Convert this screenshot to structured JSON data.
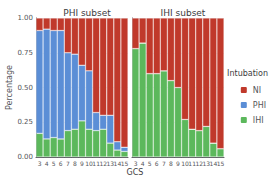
{
  "chart_data": [
    {
      "type": "bar",
      "title": "PHI subset",
      "categories": [
        3,
        4,
        5,
        6,
        7,
        8,
        9,
        10,
        11,
        12,
        13,
        14,
        15
      ],
      "series": [
        {
          "name": "IHI",
          "color": "#5cb85c",
          "values": [
            0.17,
            0.13,
            0.14,
            0.13,
            0.19,
            0.2,
            0.26,
            0.2,
            0.19,
            0.2,
            0.1,
            0.05,
            0.04
          ]
        },
        {
          "name": "PHI",
          "color": "#5b8ed6",
          "values": [
            0.74,
            0.79,
            0.77,
            0.78,
            0.56,
            0.54,
            0.4,
            0.42,
            0.13,
            0.1,
            0.2,
            0.06,
            0.03
          ]
        },
        {
          "name": "NI",
          "color": "#c0392b",
          "values": [
            0.09,
            0.08,
            0.09,
            0.09,
            0.25,
            0.26,
            0.34,
            0.38,
            0.68,
            0.7,
            0.7,
            0.89,
            0.93
          ]
        }
      ],
      "stacked": true,
      "ylim": [
        0,
        1
      ],
      "yticks": [
        {
          "value": 0,
          "label": "0.00"
        },
        {
          "value": 0.25,
          "label": "0.25"
        },
        {
          "value": 0.5,
          "label": "0.50"
        },
        {
          "value": 0.75,
          "label": "0.75"
        },
        {
          "value": 1,
          "label": "1.00"
        }
      ],
      "grid": true,
      "ylabel": "Percentage",
      "xlabel": "GCS"
    },
    {
      "type": "bar",
      "title": "IHI subset",
      "categories": [
        3,
        4,
        5,
        6,
        7,
        8,
        9,
        10,
        11,
        12,
        13,
        14,
        15
      ],
      "series": [
        {
          "name": "IHI",
          "color": "#5cb85c",
          "values": [
            0.78,
            0.82,
            0.6,
            0.6,
            0.62,
            0.55,
            0.5,
            0.27,
            0.2,
            0.19,
            0.22,
            0.1,
            0.06
          ]
        },
        {
          "name": "PHI",
          "color": "#5b8ed6",
          "values": [
            0.0,
            0.0,
            0.0,
            0.0,
            0.0,
            0.0,
            0.0,
            0.0,
            0.0,
            0.0,
            0.0,
            0.0,
            0.0
          ]
        },
        {
          "name": "NI",
          "color": "#c0392b",
          "values": [
            0.22,
            0.18,
            0.4,
            0.4,
            0.38,
            0.45,
            0.5,
            0.73,
            0.8,
            0.81,
            0.78,
            0.9,
            0.94
          ]
        }
      ],
      "stacked": true,
      "ylim": [
        0,
        1
      ],
      "yticks": [
        {
          "value": 0,
          "label": "0.00"
        },
        {
          "value": 0.25,
          "label": "0.25"
        },
        {
          "value": 0.5,
          "label": "0.50"
        },
        {
          "value": 0.75,
          "label": "0.75"
        },
        {
          "value": 1,
          "label": "1.00"
        }
      ],
      "grid": true,
      "tick_labels": "x",
      "legend": "right",
      "legend_title": "Intubation"
    }
  ]
}
